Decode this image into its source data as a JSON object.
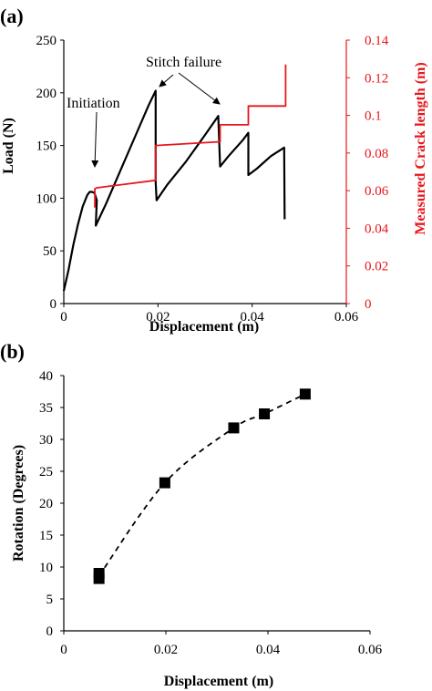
{
  "colors": {
    "load": "#000000",
    "crack": "#e8161b",
    "axis": "#000000",
    "right_axis": "#e8161b"
  },
  "panel_a": {
    "label": "(a)",
    "xlabel": "Displacement (m)",
    "ylabel_left": "Load (N)",
    "ylabel_right": "Measured Crack length (m)",
    "annotations": {
      "initiation": "Initiation",
      "stitch": "Stitch failure"
    }
  },
  "panel_b": {
    "label": "(b)",
    "xlabel": "Displacement (m)",
    "ylabel": "Rotation (Degrees)"
  },
  "chart_data": [
    {
      "type": "line",
      "panel": "a",
      "xlabel": "Displacement (m)",
      "ylabel": "Load (N)",
      "y2label": "Measured Crack length (m)",
      "xlim": [
        0,
        0.06
      ],
      "ylim": [
        0,
        250
      ],
      "y2lim": [
        0,
        0.14
      ],
      "xticks": [
        "0",
        "0.02",
        "0.04",
        "0.06"
      ],
      "yticks": [
        "0",
        "50",
        "100",
        "150",
        "200",
        "250"
      ],
      "y2ticks": [
        "0",
        "0.02",
        "0.04",
        "0.06",
        "0.08",
        "0.1",
        "0.12",
        "0.14"
      ],
      "grid": false,
      "series": [
        {
          "axis": "left",
          "color": "#000000",
          "x": [
            0,
            0.001,
            0.002,
            0.003,
            0.004,
            0.005,
            0.0055,
            0.006,
            0.0065,
            0.007,
            0.0068,
            0.009,
            0.012,
            0.015,
            0.018,
            0.0195,
            0.0195,
            0.0195,
            0.0197,
            0.022,
            0.026,
            0.03,
            0.0328,
            0.0328,
            0.0332,
            0.035,
            0.038,
            0.0392,
            0.0392,
            0.041,
            0.044,
            0.0468,
            0.0469
          ],
          "y": [
            12,
            32,
            55,
            75,
            92,
            103,
            106,
            106,
            105,
            98,
            74,
            95,
            126,
            157,
            188,
            202,
            202,
            115,
            98,
            113,
            135,
            160,
            178,
            178,
            130,
            140,
            155,
            162,
            122,
            128,
            140,
            148,
            80
          ]
        },
        {
          "axis": "right",
          "color": "#e8161b",
          "x": [
            0.0066,
            0.0066,
            0.0066,
            0.007,
            0.0195,
            0.0195,
            0.0332,
            0.0332,
            0.0392,
            0.0392,
            0.0471,
            0.0471
          ],
          "y": [
            0.051,
            0.059,
            0.061,
            0.0615,
            0.0655,
            0.084,
            0.086,
            0.095,
            0.095,
            0.105,
            0.105,
            0.127
          ]
        }
      ]
    },
    {
      "type": "scatter",
      "panel": "b",
      "xlabel": "Displacement (m)",
      "ylabel": "Rotation (Degrees)",
      "xlim": [
        0,
        0.06
      ],
      "ylim": [
        0,
        40
      ],
      "xticks": [
        "0",
        "0.02",
        "0.04",
        "0.06"
      ],
      "yticks": [
        "0",
        "5",
        "10",
        "15",
        "20",
        "25",
        "30",
        "35",
        "40"
      ],
      "grid": false,
      "trendline": "dashed",
      "x": [
        0.0069,
        0.0069,
        0.0198,
        0.0333,
        0.0393,
        0.0473
      ],
      "y": [
        8.2,
        9.0,
        23.2,
        31.8,
        34.0,
        37.1
      ]
    }
  ]
}
